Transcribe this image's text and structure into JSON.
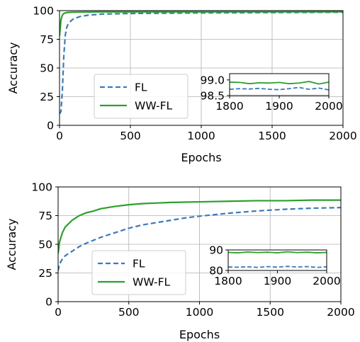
{
  "colors": {
    "fl": "#3d7ab8",
    "wwfl": "#2ca02c",
    "grid": "#b0b0b0"
  },
  "chart_data": [
    {
      "type": "line",
      "xlabel": "Epochs",
      "ylabel": "Accuracy",
      "xlim": [
        0,
        2000
      ],
      "ylim": [
        0,
        100
      ],
      "xticks": [
        "0",
        "500",
        "1000",
        "1500",
        "2000"
      ],
      "yticks": [
        "0",
        "25",
        "50",
        "75",
        "100"
      ],
      "grid": true,
      "legend_position": "lower-center",
      "series": [
        {
          "name": "FL",
          "style": "dashed",
          "x": [
            0,
            10,
            20,
            30,
            40,
            50,
            60,
            80,
            100,
            150,
            200,
            300,
            500,
            1000,
            1500,
            2000
          ],
          "y": [
            10,
            12,
            30,
            60,
            78,
            85,
            88,
            91,
            93,
            95,
            96,
            97,
            97.5,
            98.0,
            98.3,
            98.6
          ]
        },
        {
          "name": "WW-FL",
          "style": "solid",
          "x": [
            0,
            10,
            20,
            30,
            50,
            80,
            150,
            300,
            1000,
            2000
          ],
          "y": [
            78,
            92,
            96,
            97.5,
            98.3,
            98.6,
            98.8,
            98.9,
            98.9,
            99.0
          ]
        }
      ],
      "inset": {
        "xlim": [
          1800,
          2000
        ],
        "ylim": [
          98.5,
          99.2
        ],
        "xticks": [
          "1800",
          "1900",
          "2000"
        ],
        "yticks": [
          "98.5",
          "99.0"
        ],
        "series": [
          {
            "name": "FL",
            "x": [
              1800,
              1820,
              1840,
              1860,
              1880,
              1900,
              1920,
              1940,
              1960,
              1980,
              2000
            ],
            "y": [
              98.7,
              98.72,
              98.71,
              98.73,
              98.7,
              98.69,
              98.72,
              98.76,
              98.7,
              98.74,
              98.68
            ]
          },
          {
            "name": "WW-FL",
            "x": [
              1800,
              1820,
              1840,
              1860,
              1880,
              1900,
              1920,
              1940,
              1960,
              1980,
              2000
            ],
            "y": [
              98.93,
              98.92,
              98.88,
              98.91,
              98.9,
              98.92,
              98.88,
              98.9,
              98.95,
              98.87,
              98.93
            ]
          }
        ]
      }
    },
    {
      "type": "line",
      "xlabel": "Epochs",
      "ylabel": "Accuracy",
      "xlim": [
        0,
        2000
      ],
      "ylim": [
        0,
        100
      ],
      "xticks": [
        "0",
        "500",
        "1000",
        "1500",
        "2000"
      ],
      "yticks": [
        "0",
        "25",
        "50",
        "75",
        "100"
      ],
      "grid": true,
      "legend_position": "lower-left",
      "series": [
        {
          "name": "FL",
          "style": "dashed",
          "x": [
            0,
            10,
            30,
            50,
            100,
            150,
            200,
            300,
            400,
            500,
            600,
            700,
            800,
            900,
            1000,
            1200,
            1400,
            1600,
            1800,
            2000
          ],
          "y": [
            27,
            33,
            37,
            40,
            44,
            48,
            51,
            56,
            60,
            64,
            67,
            69,
            71,
            73,
            74.5,
            77,
            79,
            80.5,
            81.5,
            82
          ]
        },
        {
          "name": "WW-FL",
          "style": "solid",
          "x": [
            0,
            10,
            30,
            50,
            100,
            150,
            200,
            250,
            300,
            400,
            500,
            600,
            700,
            800,
            1000,
            1200,
            1400,
            1600,
            1800,
            2000
          ],
          "y": [
            42,
            52,
            60,
            65,
            71,
            75,
            77.5,
            79,
            81,
            83,
            84.5,
            85.5,
            86,
            86.5,
            87,
            87.5,
            88,
            88,
            88.5,
            88.5
          ]
        }
      ],
      "inset": {
        "xlim": [
          1800,
          2000
        ],
        "ylim": [
          80,
          90
        ],
        "xticks": [
          "1800",
          "1900",
          "2000"
        ],
        "yticks": [
          "80",
          "90"
        ],
        "series": [
          {
            "name": "FL",
            "x": [
              1800,
              1820,
              1840,
              1860,
              1880,
              1900,
              1920,
              1940,
              1960,
              1980,
              2000
            ],
            "y": [
              81.7,
              81.6,
              81.8,
              81.5,
              81.9,
              81.6,
              82.0,
              81.7,
              81.9,
              81.5,
              81.8
            ]
          },
          {
            "name": "WW-FL",
            "x": [
              1800,
              1820,
              1840,
              1860,
              1880,
              1900,
              1920,
              1940,
              1960,
              1980,
              2000
            ],
            "y": [
              88.8,
              88.6,
              89.0,
              88.7,
              88.9,
              88.6,
              89.1,
              88.7,
              88.9,
              88.6,
              88.8
            ]
          }
        ]
      }
    }
  ]
}
